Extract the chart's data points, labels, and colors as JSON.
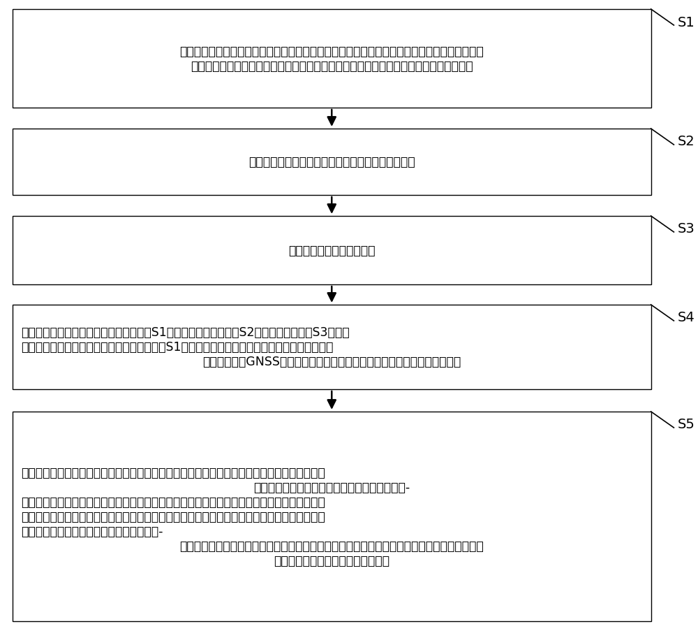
{
  "background_color": "#ffffff",
  "box_border_color": "#000000",
  "box_fill_color": "#ffffff",
  "arrow_color": "#000000",
  "label_color": "#000000",
  "text_color": "#000000",
  "font_size": 12.5,
  "label_font_size": 14,
  "boxes": [
    {
      "id": "S1",
      "label": "S1",
      "text_lines": [
        "根据滑坡所处的库区水位周期调度情况建立概化模型，利用滑坡岩土体的参数数据计算力学分析",
        "时标和流体分析时标，比较力学分析时标和流体分析时标的大小，确定流固耦合模拟方法"
      ],
      "align": "center"
    },
    {
      "id": "S2",
      "label": "S2",
      "text_lines": [
        "建立滑带土的蠕变本构模型，识别滑带土的蠕变参数"
      ],
      "align": "center"
    },
    {
      "id": "S3",
      "label": "S3",
      "text_lines": [
        "计算滑带土的长期抗剪强度"
      ],
      "align": "center"
    },
    {
      "id": "S4",
      "label": "S4",
      "text_lines": [
        "构建滑坡模型，在滑坡涉水部位施加步骤S1的概化模型，利用步骤S2的蠕变参数和步骤S3的长期",
        "抗剪强度设置滑坡岩土体本构模型，根据步骤S1的流固耦合模拟方法设置耦合方式，在滑坡模型",
        "上设置与现场GNSS监测对应的监测点，计算滑坡的应力场、应变场和渗流场"
      ],
      "align": "left_center"
    },
    {
      "id": "S5",
      "label": "S5",
      "text_lines": [
        "对滑带土长期抗剪强度指标进行线性增加折减，每折减一次，重复计算滑坡的应力场、应变场和",
        "渗流场，并记录当前监测点的位移值，绘制位移-",
        "折减系数曲线，直至曲线出现突变，停止折减，记录最后一次折减系数，对最后一次折减系数进",
        "行线性减小折减，每折减一次，重复计算滑坡的应力场、应变场和渗流场，记录当前监测点的位",
        "移值，将该当前监测点的位移值插入到位移-",
        "折减系数曲线上，直至插值点前未发生位移突变，记录最后一次插值点对应的折减系数，该折减",
        "系数即为滑坡当前状态下的稳定系数"
      ],
      "align": "left_center"
    }
  ],
  "fig_width": 10.0,
  "fig_height": 9.04,
  "dpi": 100
}
